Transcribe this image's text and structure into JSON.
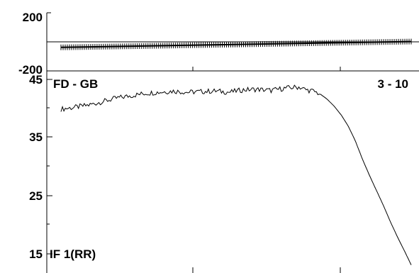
{
  "chart_data": [
    {
      "type": "line",
      "panel": "phase",
      "yticks": [
        "200",
        "-200"
      ],
      "ylim": [
        -200,
        200
      ],
      "xlim": [
        0,
        1
      ],
      "grid": false,
      "series": [
        {
          "kind": "reference-line",
          "y": 0
        },
        {
          "kind": "hatched-trace",
          "x": [
            0.0,
            1.0
          ],
          "y": [
            -38,
            2
          ]
        }
      ]
    },
    {
      "type": "line",
      "panel": "amplitude",
      "title": "FD - GB",
      "annotation_left": "IF 1(RR)",
      "annotation_right": "3 - 10",
      "yticks": [
        "45",
        "35",
        "25",
        "15"
      ],
      "ylim": [
        14,
        45
      ],
      "xlim": [
        0,
        1
      ],
      "grid": false,
      "series": [
        {
          "x": [
            0.0,
            0.04,
            0.08,
            0.12,
            0.16,
            0.2,
            0.24,
            0.28,
            0.32,
            0.36,
            0.4,
            0.44,
            0.48,
            0.52,
            0.56,
            0.6,
            0.64,
            0.68,
            0.7,
            0.72,
            0.74,
            0.76,
            0.78,
            0.8,
            0.82,
            0.84,
            0.86,
            0.88,
            0.9,
            0.92,
            0.94,
            0.96,
            0.98,
            1.0
          ],
          "y": [
            39.9,
            40.2,
            40.6,
            41.2,
            41.8,
            42.2,
            42.6,
            42.8,
            43.0,
            42.8,
            42.9,
            43.0,
            42.8,
            43.2,
            43.3,
            43.1,
            43.5,
            43.7,
            43.2,
            43.0,
            42.5,
            41.6,
            40.4,
            38.9,
            37.0,
            34.5,
            31.4,
            28.6,
            26.0,
            23.4,
            20.6,
            18.0,
            15.6,
            13.1
          ]
        }
      ]
    }
  ]
}
